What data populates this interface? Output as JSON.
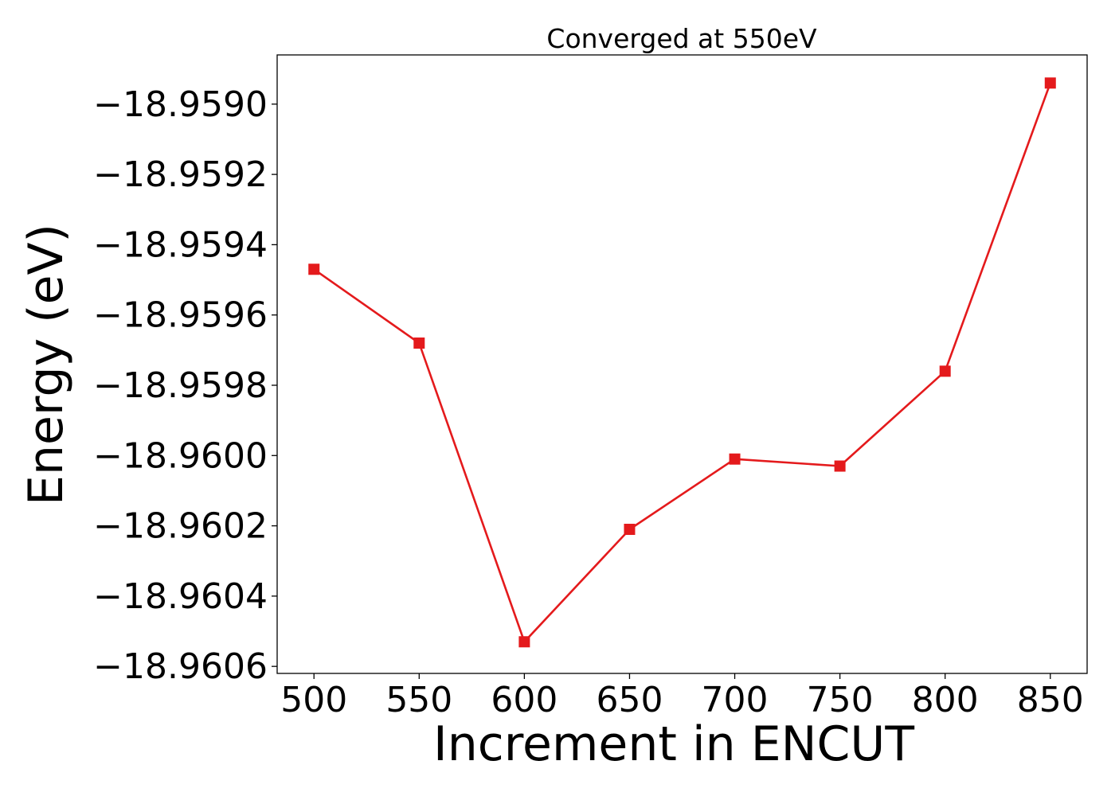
{
  "chart_data": {
    "type": "line",
    "title": "Converged at 550eV",
    "xlabel": "Increment in ENCUT",
    "ylabel": "Energy (eV)",
    "x": [
      500,
      550,
      600,
      650,
      700,
      750,
      800,
      850
    ],
    "series": [
      {
        "values": [
          -18.95947,
          -18.95968,
          -18.96053,
          -18.96021,
          -18.96001,
          -18.96003,
          -18.95976,
          -18.95894
        ],
        "color": "#e41a1c",
        "marker": "square"
      }
    ],
    "x_ticks": [
      500,
      550,
      600,
      650,
      700,
      750,
      800,
      850
    ],
    "x_tick_labels": [
      "500",
      "550",
      "600",
      "650",
      "700",
      "750",
      "800",
      "850"
    ],
    "y_ticks": [
      -18.959,
      -18.9592,
      -18.9594,
      -18.9596,
      -18.9598,
      -18.96,
      -18.9602,
      -18.9604,
      -18.9606
    ],
    "y_tick_labels": [
      "−18.9590",
      "−18.9592",
      "−18.9594",
      "−18.9596",
      "−18.9598",
      "−18.9600",
      "−18.9602",
      "−18.9604",
      "−18.9606"
    ],
    "xlim": [
      482.5,
      867.5
    ],
    "ylim": [
      -18.96062,
      -18.95886
    ],
    "grid": false,
    "legend": "none"
  }
}
